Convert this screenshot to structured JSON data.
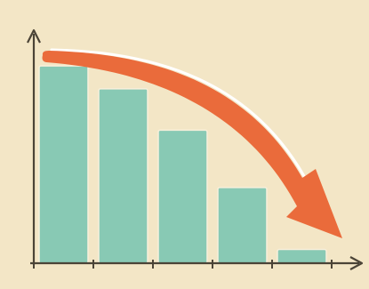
{
  "colors": {
    "background": "#f3e6c6",
    "bar": "#88c9b4",
    "bar_edge": "#f7efdb",
    "axis": "#4b4437",
    "arrow": "#ea6b3b",
    "arrow_highlight": "#ffffff"
  },
  "chart_data": {
    "type": "bar",
    "categories": [
      "",
      "",
      "",
      "",
      ""
    ],
    "values": [
      86,
      76,
      58,
      33,
      6
    ],
    "title": "",
    "xlabel": "",
    "ylabel": "",
    "ylim": [
      0,
      100
    ],
    "grid": false,
    "x_ticks": 6,
    "annotation": {
      "type": "trend-arrow",
      "direction": "down",
      "icon": "curved-arrow-down-right"
    }
  }
}
